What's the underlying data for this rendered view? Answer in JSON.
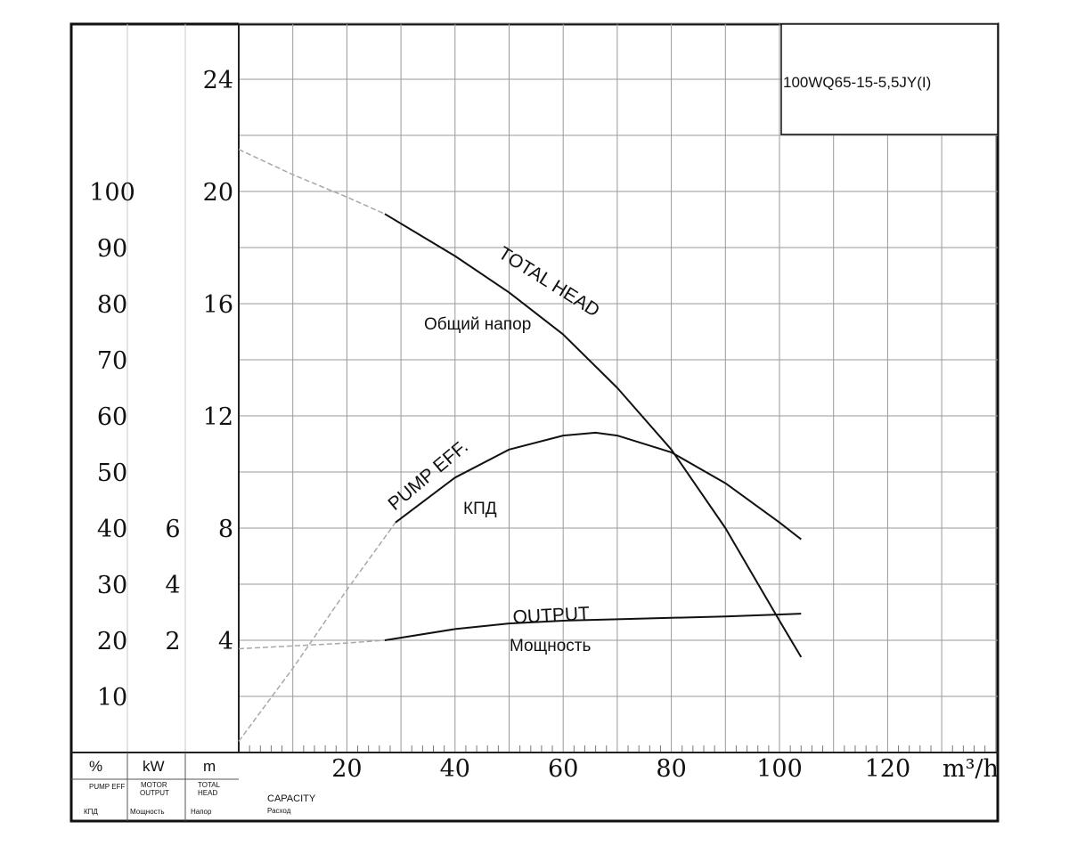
{
  "model_label": "100WQ65-15-5,5JY(I)",
  "unit_labels": {
    "percent": "%",
    "kw": "kW",
    "m": "m",
    "flow": "m³/h",
    "eff_caption": "PUMP EFF",
    "eff_caption_ru": "КПД",
    "motor_caption_line1": "MOTOR",
    "motor_caption_line2": "OUTPUT",
    "motor_caption_ru": "Мощность",
    "head_caption_line1": "TOTAL",
    "head_caption_line2": "HEAD",
    "head_caption_ru": "Напор",
    "capacity_caption": "CAPACITY",
    "capacity_caption_ru": "Расход"
  },
  "chart_data": {
    "type": "line",
    "xlabel": "m³/h",
    "xlim": [
      0,
      140
    ],
    "x_ticks": [
      20,
      40,
      60,
      80,
      100,
      120
    ],
    "axes": {
      "head_m": {
        "label": "m",
        "ticks": [
          4,
          8,
          12,
          16,
          20,
          24
        ],
        "range": [
          0,
          26
        ]
      },
      "power_kw": {
        "label": "kW",
        "ticks": [
          2,
          4,
          6
        ],
        "range": [
          0,
          26
        ]
      },
      "efficiency_pct": {
        "label": "%",
        "ticks": [
          10,
          20,
          30,
          40,
          50,
          60,
          70,
          80,
          90,
          100
        ],
        "range": [
          0,
          130
        ]
      }
    },
    "series": [
      {
        "name": "TOTAL HEAD",
        "name_ru": "Общий напор",
        "axis": "head_m",
        "extrapolated": {
          "x": [
            0,
            10,
            20,
            27
          ],
          "y": [
            21.5,
            20.6,
            19.8,
            19.2
          ]
        },
        "x": [
          27,
          40,
          50,
          60,
          70,
          80,
          90,
          100,
          104
        ],
        "y": [
          19.2,
          17.7,
          16.4,
          14.9,
          13.0,
          10.8,
          8.0,
          4.7,
          3.4
        ]
      },
      {
        "name": "PUMP EFF.",
        "name_ru": "КПД",
        "axis": "efficiency_pct",
        "extrapolated": {
          "x": [
            0,
            10,
            20,
            29
          ],
          "y": [
            2,
            15,
            29,
            41
          ]
        },
        "x": [
          29,
          40,
          50,
          60,
          66,
          70,
          80,
          90,
          100,
          104
        ],
        "y": [
          41,
          49,
          54,
          56.5,
          57,
          56.5,
          53.5,
          48,
          41,
          38
        ]
      },
      {
        "name": "OUTPUT",
        "name_ru": "Мощность",
        "axis": "power_kw",
        "extrapolated": {
          "x": [
            0,
            10,
            20,
            27
          ],
          "y": [
            3.7,
            3.8,
            3.9,
            4.0
          ]
        },
        "x": [
          27,
          40,
          50,
          60,
          70,
          80,
          90,
          104
        ],
        "y": [
          4.0,
          4.4,
          4.6,
          4.7,
          4.75,
          4.8,
          4.85,
          4.95
        ]
      }
    ]
  }
}
